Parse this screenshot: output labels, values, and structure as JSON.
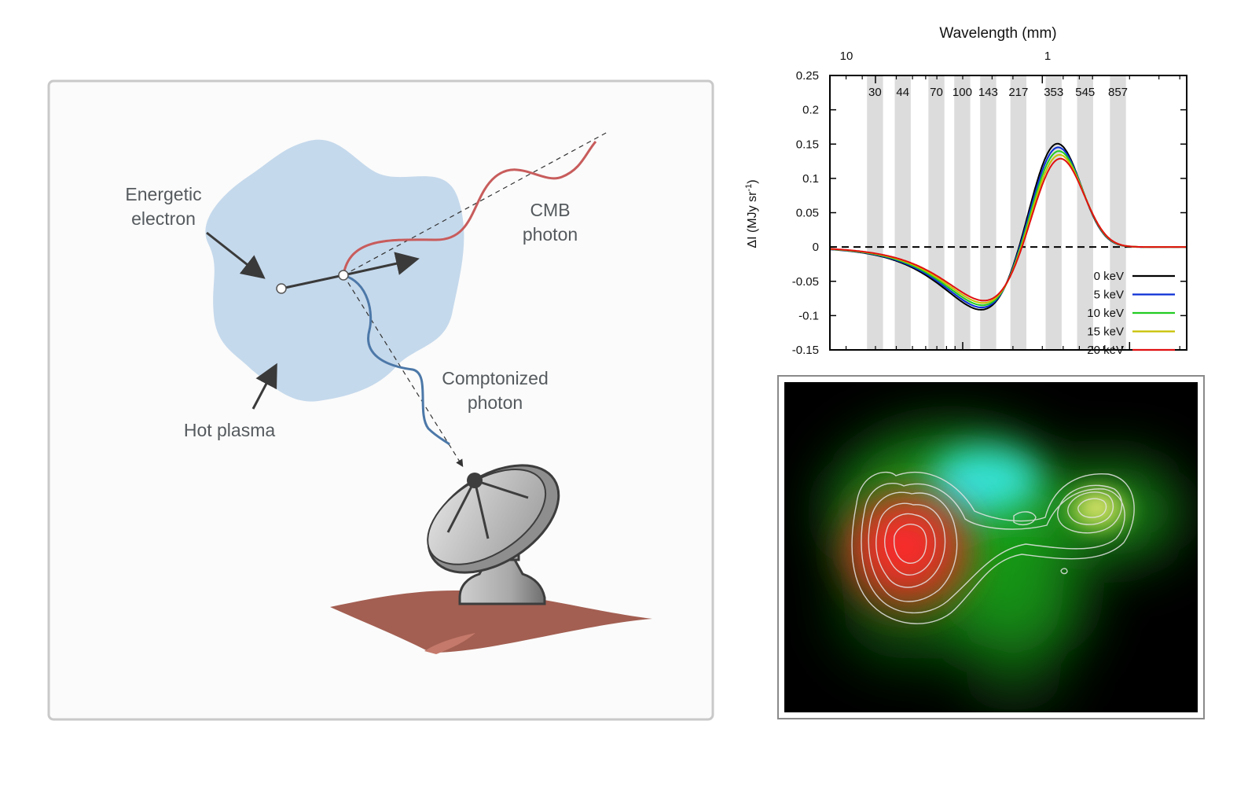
{
  "diagram": {
    "labels": {
      "electron_line1": "Energetic",
      "electron_line2": "electron",
      "cmb_line1": "CMB",
      "cmb_line2": "photon",
      "comptonized_line1": "Comptonized",
      "comptonized_line2": "photon",
      "plasma": "Hot plasma"
    },
    "icons": [
      "radio-telescope-icon"
    ]
  },
  "chart_data": {
    "type": "line",
    "title": "",
    "top_axis_label": "Wavelength (mm)",
    "top_ticks": [
      "10",
      "1"
    ],
    "ylabel": "ΔI (MJy sr",
    "ylabel_sup": "-1",
    "ylabel_close": ")",
    "ylim": [
      -0.15,
      0.25
    ],
    "yticks": [
      "0.25",
      "0.2",
      "0.15",
      "0.1",
      "0.05",
      "0",
      "-0.05",
      "-0.1",
      "-0.15"
    ],
    "bands": [
      {
        "label": "30",
        "freq": 30
      },
      {
        "label": "44",
        "freq": 44
      },
      {
        "label": "70",
        "freq": 70
      },
      {
        "label": "100",
        "freq": 100
      },
      {
        "label": "143",
        "freq": 143
      },
      {
        "label": "217",
        "freq": 217
      },
      {
        "label": "353",
        "freq": 353
      },
      {
        "label": "545",
        "freq": 545
      },
      {
        "label": "857",
        "freq": 857
      }
    ],
    "zero_line": "dashed",
    "legend_position": "bottom-right",
    "series": [
      {
        "name": "0 keV",
        "color": "#000000",
        "te": 0
      },
      {
        "name": "5 keV",
        "color": "#0a2fd6",
        "te": 5
      },
      {
        "name": "10 keV",
        "color": "#22cc22",
        "te": 10
      },
      {
        "name": "15 keV",
        "color": "#c8c000",
        "te": 15
      },
      {
        "name": "20 keV",
        "color": "#e01010",
        "te": 20
      }
    ]
  },
  "map_image": {
    "colors": {
      "red": "#ff2a2a",
      "green": "#1fae1f",
      "cyan": "#38f0f0",
      "yellow": "#f2f07a"
    }
  }
}
